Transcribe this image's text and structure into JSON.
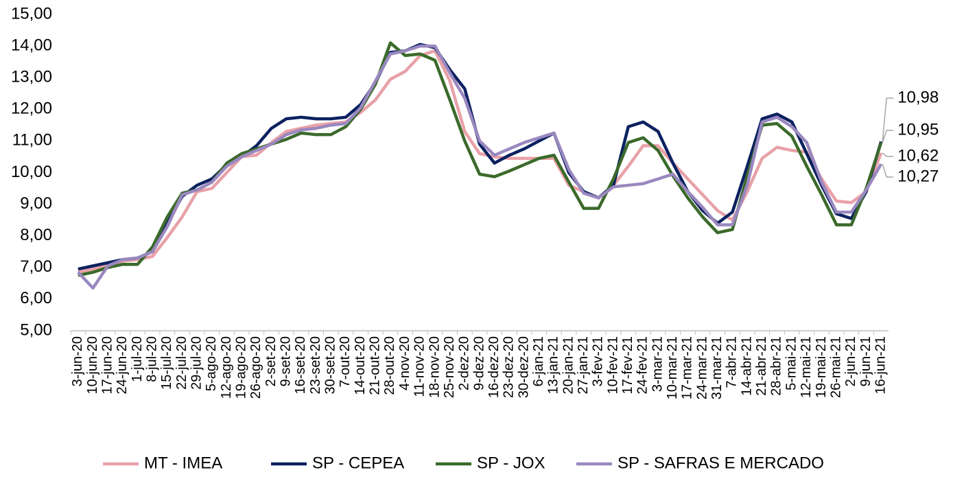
{
  "chart_data": {
    "type": "line",
    "categories": [
      "3-jun-20",
      "10-jun-20",
      "17-jun-20",
      "24-jun-20",
      "1-jul-20",
      "8-jul-20",
      "15-jul-20",
      "22-jul-20",
      "29-jul-20",
      "5-ago-20",
      "12-ago-20",
      "19-ago-20",
      "26-ago-20",
      "2-set-20",
      "9-set-20",
      "16-set-20",
      "23-set-20",
      "30-set-20",
      "7-out-20",
      "14-out-20",
      "21-out-20",
      "28-out-20",
      "4-nov-20",
      "11-nov-20",
      "18-nov-20",
      "25-nov-20",
      "2-dez-20",
      "9-dez-20",
      "16-dez-20",
      "23-dez-20",
      "30-dez-20",
      "6-jan-21",
      "13-jan-21",
      "20-jan-21",
      "27-jan-21",
      "3-fev-21",
      "10-fev-21",
      "17-fev-21",
      "24-fev-21",
      "3-mar-21",
      "10-mar-21",
      "17-mar-21",
      "24-mar-21",
      "31-mar-21",
      "7-abr-21",
      "14-abr-21",
      "21-abr-21",
      "28-abr-21",
      "5-mai-21",
      "12-mai-21",
      "19-mai-21",
      "26-mai-21",
      "2-jun-21",
      "9-jun-21",
      "16-jun-21"
    ],
    "series": [
      {
        "name": "MT - IMEA",
        "color": "#e8a1a8",
        "values": [
          6.85,
          6.95,
          7.05,
          7.2,
          7.25,
          7.35,
          7.95,
          8.6,
          9.4,
          9.5,
          10.0,
          10.5,
          10.55,
          10.95,
          11.3,
          11.4,
          11.5,
          11.55,
          11.6,
          11.9,
          12.3,
          12.95,
          13.2,
          13.7,
          13.85,
          12.9,
          11.3,
          10.6,
          10.5,
          10.45,
          10.45,
          10.45,
          10.45,
          9.6,
          9.4,
          9.2,
          9.6,
          10.2,
          10.85,
          10.85,
          10.3,
          9.8,
          9.3,
          8.8,
          8.5,
          9.4,
          10.45,
          10.8,
          10.7,
          10.65,
          9.8,
          9.1,
          9.05,
          9.4,
          10.62
        ]
      },
      {
        "name": "SP - CEPEA",
        "color": "#0b2160",
        "values": [
          6.95,
          7.05,
          7.15,
          7.25,
          7.3,
          7.5,
          8.4,
          9.25,
          9.6,
          9.8,
          10.25,
          10.5,
          10.85,
          11.4,
          11.7,
          11.75,
          11.7,
          11.7,
          11.75,
          12.15,
          12.85,
          13.8,
          13.85,
          14.05,
          13.95,
          13.25,
          12.65,
          10.9,
          10.3,
          10.55,
          10.75,
          11.0,
          11.25,
          10.0,
          9.4,
          9.2,
          9.6,
          11.45,
          11.6,
          11.3,
          10.3,
          9.4,
          8.8,
          8.4,
          8.75,
          10.2,
          11.7,
          11.85,
          11.6,
          10.6,
          9.6,
          8.7,
          8.55,
          9.4,
          10.98
        ]
      },
      {
        "name": "SP - JOX",
        "color": "#3b6a2b",
        "values": [
          6.75,
          6.85,
          7.0,
          7.1,
          7.1,
          7.65,
          8.6,
          9.35,
          9.45,
          9.7,
          10.3,
          10.6,
          10.75,
          10.9,
          11.05,
          11.25,
          11.2,
          11.2,
          11.45,
          12.0,
          12.8,
          14.1,
          13.7,
          13.75,
          13.55,
          12.3,
          11.0,
          9.95,
          9.87,
          10.05,
          10.25,
          10.45,
          10.55,
          9.7,
          8.87,
          8.87,
          9.8,
          10.95,
          11.1,
          10.7,
          9.9,
          9.2,
          8.6,
          8.1,
          8.2,
          9.9,
          11.5,
          11.55,
          11.15,
          10.2,
          9.3,
          8.35,
          8.35,
          9.5,
          10.95
        ]
      },
      {
        "name": "SP - SAFRAS E MERCADO",
        "color": "#9a88bf",
        "values": [
          6.85,
          6.35,
          7.05,
          7.25,
          7.3,
          7.5,
          8.3,
          9.3,
          9.45,
          9.7,
          10.2,
          10.5,
          10.7,
          10.9,
          11.2,
          11.35,
          11.4,
          11.5,
          11.55,
          12.05,
          12.9,
          13.75,
          13.85,
          14.0,
          14.0,
          13.15,
          12.35,
          11.0,
          10.55,
          10.75,
          10.95,
          11.1,
          11.25,
          10.1,
          9.35,
          9.2,
          9.55,
          9.6,
          9.65,
          9.8,
          9.95,
          9.4,
          8.9,
          8.35,
          8.35,
          9.6,
          11.6,
          11.75,
          11.45,
          10.95,
          9.7,
          8.75,
          8.75,
          9.45,
          10.27
        ]
      }
    ],
    "ylim": [
      5,
      15
    ],
    "yticks": [
      {
        "value": 5,
        "label": "5,00"
      },
      {
        "value": 6,
        "label": "6,00"
      },
      {
        "value": 7,
        "label": "7,00"
      },
      {
        "value": 8,
        "label": "8,00"
      },
      {
        "value": 9,
        "label": "9,00"
      },
      {
        "value": 10,
        "label": "10,00"
      },
      {
        "value": 11,
        "label": "11,00"
      },
      {
        "value": 12,
        "label": "12,00"
      },
      {
        "value": 13,
        "label": "13,00"
      },
      {
        "value": 14,
        "label": "14,00"
      },
      {
        "value": 15,
        "label": "15,00"
      }
    ],
    "end_labels": [
      {
        "value": 10.98,
        "label": "10,98"
      },
      {
        "value": 10.95,
        "label": "10,95"
      },
      {
        "value": 10.62,
        "label": "10,62"
      },
      {
        "value": 10.27,
        "label": "10,27"
      }
    ],
    "legend": "bottom"
  }
}
